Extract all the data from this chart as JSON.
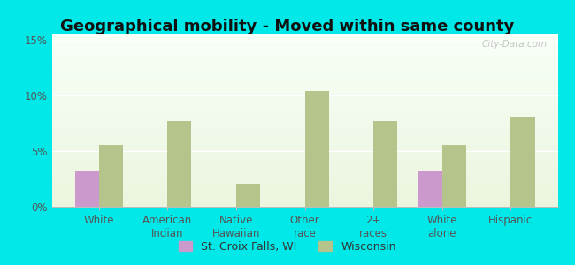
{
  "title": "Geographical mobility - Moved within same county",
  "categories": [
    "White",
    "American\nIndian",
    "Native\nHawaiian",
    "Other\nrace",
    "2+\nraces",
    "White\nalone",
    "Hispanic"
  ],
  "st_croix_values": [
    3.2,
    0,
    0,
    0,
    0,
    3.2,
    0
  ],
  "wisconsin_values": [
    5.6,
    7.7,
    2.1,
    10.4,
    7.7,
    5.6,
    8.0
  ],
  "bar_width": 0.35,
  "st_croix_color": "#cc99cc",
  "wisconsin_color": "#b5c48a",
  "ylim": [
    0,
    0.155
  ],
  "yticks": [
    0,
    0.05,
    0.1,
    0.15
  ],
  "ytick_labels": [
    "0%",
    "5%",
    "10%",
    "15%"
  ],
  "title_fontsize": 13,
  "tick_fontsize": 8.5,
  "legend_label_1": "St. Croix Falls, WI",
  "legend_label_2": "Wisconsin",
  "cyan_bg": "#00e8e8",
  "watermark": "City-Data.com"
}
